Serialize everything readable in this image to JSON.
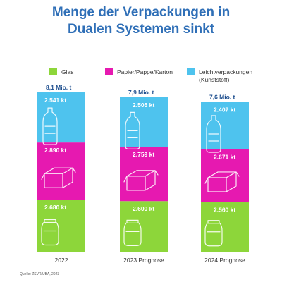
{
  "title_line1": "Menge der Verpackungen in",
  "title_line2": "Dualen Systemen sinkt",
  "legend": [
    {
      "label": "Glas",
      "label2": "",
      "color": "#8dd63a"
    },
    {
      "label": "Papier/Pappe/Karton",
      "label2": "",
      "color": "#e619b0"
    },
    {
      "label": "Leichtverpackungen",
      "label2": "(Kunststoff)",
      "color": "#4ec3ee"
    }
  ],
  "chart_data": {
    "type": "bar",
    "stacked": true,
    "categories": [
      "2022",
      "2023 Prognose",
      "2024 Prognose"
    ],
    "totals": [
      "8,1 Mio. t",
      "7,9 Mio. t",
      "7,6 Mio. t"
    ],
    "series": [
      {
        "name": "Glas",
        "values": [
          2680,
          2600,
          2560
        ],
        "labels": [
          "2.680 kt",
          "2.600 kt",
          "2.560 kt"
        ],
        "color": "#8dd63a",
        "icon": "jar-icon"
      },
      {
        "name": "Papier/Pappe/Karton",
        "values": [
          2890,
          2759,
          2671
        ],
        "labels": [
          "2.890 kt",
          "2.759 kt",
          "2.671 kt"
        ],
        "color": "#e619b0",
        "icon": "box-icon"
      },
      {
        "name": "Leichtverpackungen (Kunststoff)",
        "values": [
          2541,
          2505,
          2407
        ],
        "labels": [
          "2.541 kt",
          "2.505 kt",
          "2.407 kt"
        ],
        "color": "#4ec3ee",
        "icon": "bottle-icon"
      }
    ],
    "grid": false,
    "legend_position": "top"
  },
  "source": "Quelle: ZSVR/UBA, 2023"
}
